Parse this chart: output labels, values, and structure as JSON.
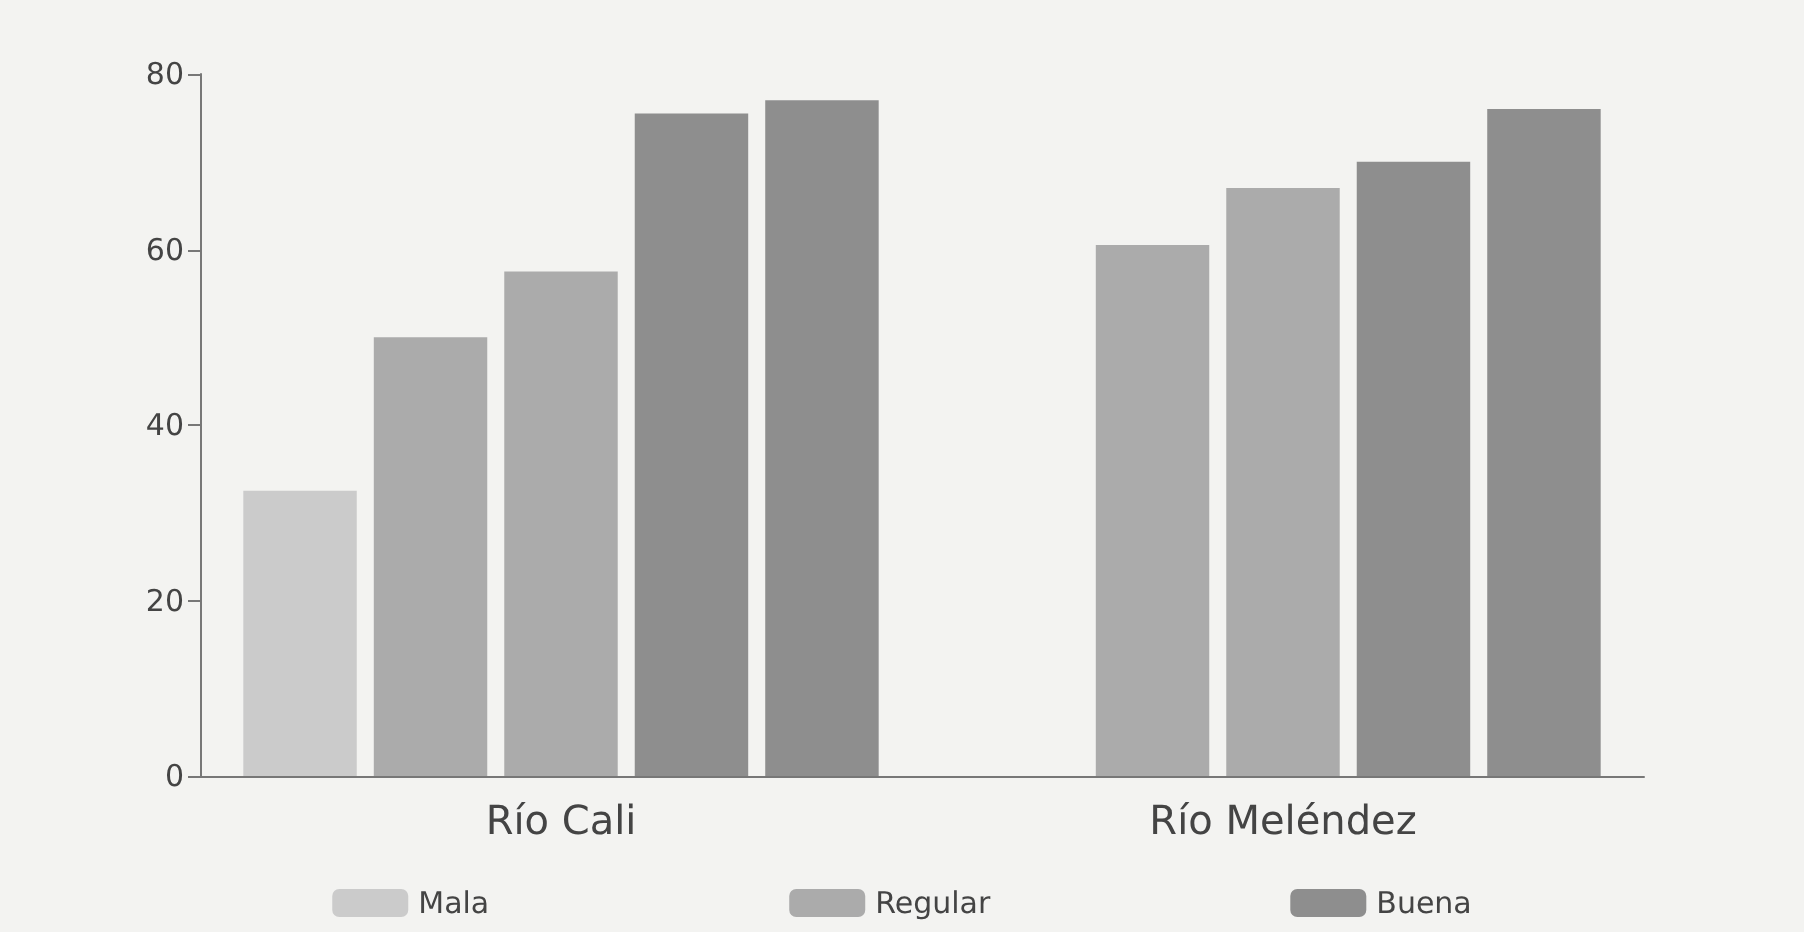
{
  "chart_data": {
    "type": "bar",
    "categories": [
      "Río Cali",
      "Río Meléndez"
    ],
    "series": [
      {
        "name": "Mala",
        "color": "#cbcbcb",
        "values": [
          32.5,
          null
        ]
      },
      {
        "name": "Regular",
        "color": "#ababab",
        "values": [
          50,
          60.5
        ]
      },
      {
        "color": "#ababab",
        "values": [
          57.5,
          67
        ]
      },
      {
        "name": "Buena",
        "color": "#8e8e8e",
        "values": [
          75.5,
          70
        ]
      },
      {
        "color": "#8e8e8e",
        "values": [
          77,
          76
        ]
      }
    ],
    "ylim": [
      0,
      80
    ],
    "yticks": [
      0,
      20,
      40,
      60,
      80
    ],
    "grid": false,
    "legend": "bottom"
  }
}
